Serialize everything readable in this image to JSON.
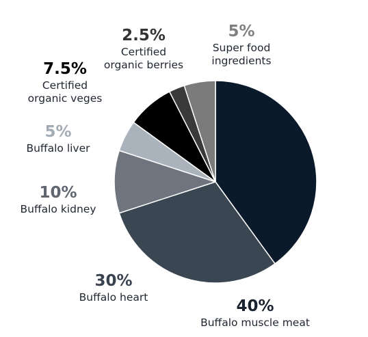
{
  "chart_data": {
    "type": "pie",
    "start_angle_deg": 0,
    "direction": "clockwise",
    "slices": [
      {
        "value": 40,
        "percent_label": "40%",
        "lines": [
          "Buffalo muscle meat"
        ],
        "color": "#0b1a2a",
        "label_color": "#1a2230"
      },
      {
        "value": 30,
        "percent_label": "30%",
        "lines": [
          "Buffalo heart"
        ],
        "color": "#3b4653",
        "label_color": "#3a4451"
      },
      {
        "value": 10,
        "percent_label": "10%",
        "lines": [
          "Buffalo kidney"
        ],
        "color": "#6e757e",
        "label_color": "#5f6670"
      },
      {
        "value": 5,
        "percent_label": "5%",
        "lines": [
          "Buffalo liver"
        ],
        "color": "#aab3bb",
        "label_color": "#a3acb5"
      },
      {
        "value": 7.5,
        "percent_label": "7.5%",
        "lines": [
          "Certified",
          "organic veges"
        ],
        "color": "#000000",
        "label_color": "#000000"
      },
      {
        "value": 2.5,
        "percent_label": "2.5%",
        "lines": [
          "Certified",
          "organic berries"
        ],
        "color": "#3a3a3a",
        "label_color": "#333333"
      },
      {
        "value": 5,
        "percent_label": "5%",
        "lines": [
          "Super food",
          "ingredients"
        ],
        "color": "#7b7b7b",
        "label_color": "#808080"
      }
    ]
  }
}
